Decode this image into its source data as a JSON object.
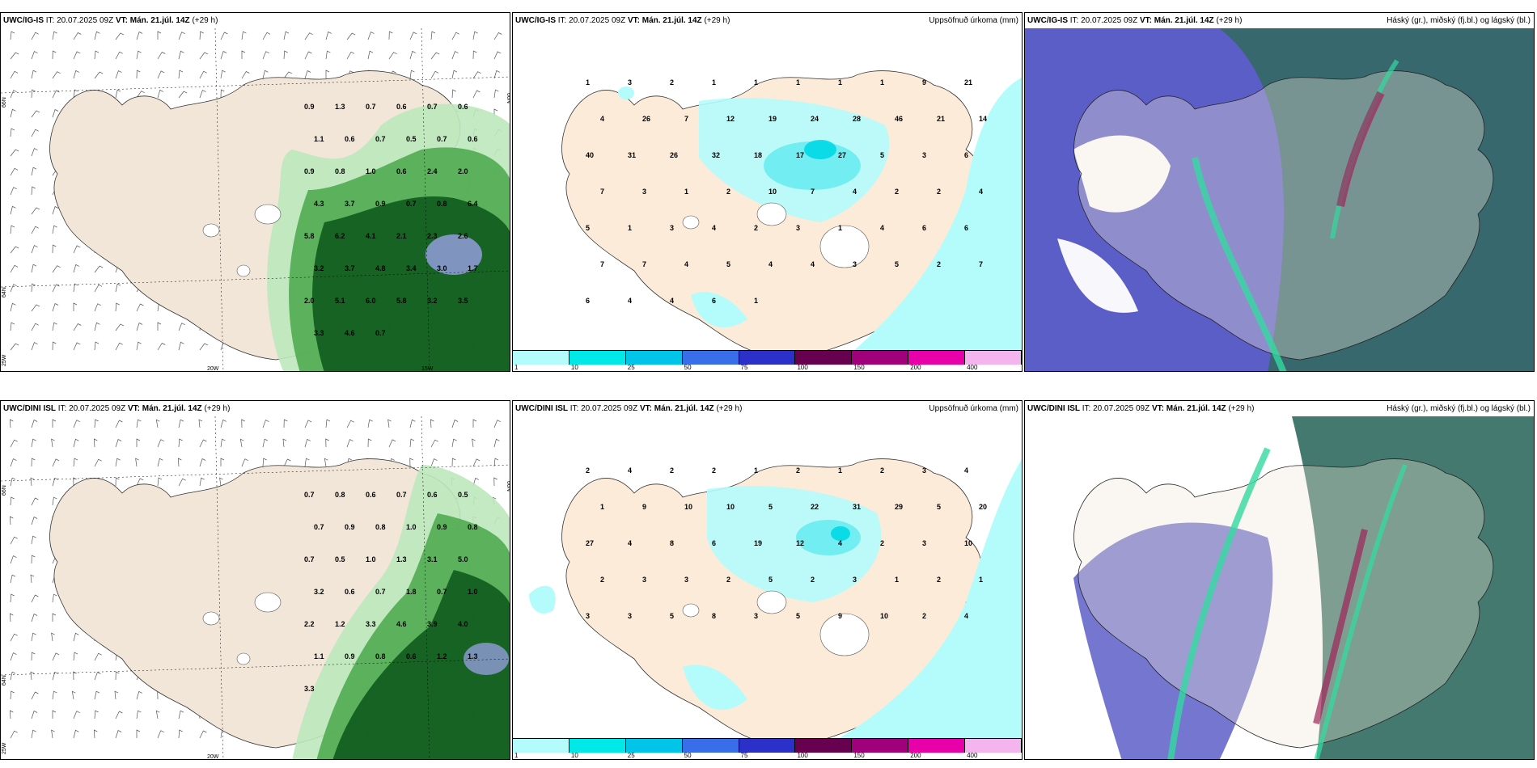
{
  "rows": [
    {
      "model": "UWC/IG-IS",
      "it_label": "IT:",
      "it_value": "20.07.2025 09Z",
      "vt_label": "VT:",
      "vt_value": "Mán. 21.júl. 14Z",
      "lead": "(+29 h)"
    },
    {
      "model": "UWC/DINI ISL",
      "it_label": "IT:",
      "it_value": "20.07.2025 09Z",
      "vt_label": "VT:",
      "vt_value": "Mán. 21.júl. 14Z",
      "lead": "(+29 h)"
    }
  ],
  "precip_title": "Uppsöfnuð úrkoma (mm)",
  "cloud_title": "Háský (gr.), miðský (fj.bl.) og lágský (bl.)",
  "axis_labels": {
    "lat66": "66N",
    "lat64": "64N",
    "lon25": "25W",
    "lon20": "20W",
    "lon15": "15W"
  },
  "legend": {
    "colors": [
      "#b4fcfc",
      "#00e8e8",
      "#00c4e8",
      "#3a6ee8",
      "#2a30c8",
      "#680050",
      "#a0007a",
      "#e800a8",
      "#f4b4ee"
    ],
    "labels": [
      "1",
      "10",
      "25",
      "50",
      "75",
      "100",
      "150",
      "200",
      "400"
    ]
  },
  "rain_labels": [
    [
      "0.9",
      "1.3",
      "0.7",
      "0.6",
      "0.7",
      "0.6",
      "1.1",
      "0.6",
      "0.7",
      "0.5",
      "0.7",
      "0.6",
      "0.9",
      "0.8",
      "1.0",
      "0.6",
      "2.4",
      "2.0",
      "4.3",
      "3.7",
      "0.9",
      "0.7",
      "0.8",
      "6.4",
      "5.8",
      "6.2",
      "4.1",
      "2.1",
      "2.3",
      "2.6",
      "3.2",
      "3.7",
      "4.8",
      "3.4",
      "3.0",
      "1.7",
      "2.0",
      "5.1",
      "6.0",
      "5.8",
      "3.2",
      "3.5",
      "3.3",
      "4.6",
      "0.7"
    ],
    [
      "0.7",
      "0.8",
      "0.6",
      "0.7",
      "0.6",
      "0.5",
      "0.7",
      "0.9",
      "0.8",
      "1.0",
      "0.9",
      "0.8",
      "0.7",
      "0.5",
      "1.0",
      "1.3",
      "3.1",
      "5.0",
      "3.2",
      "0.6",
      "0.7",
      "1.8",
      "0.7",
      "1.0",
      "2.2",
      "1.2",
      "3.3",
      "4.6",
      "3.9",
      "4.0",
      "1.1",
      "0.9",
      "0.8",
      "0.6",
      "1.2",
      "1.3",
      "3.3"
    ]
  ],
  "precip_labels": [
    [
      "1",
      "3",
      "2",
      "1",
      "1",
      "1",
      "1",
      "1",
      "9",
      "21",
      "4",
      "26",
      "7",
      "12",
      "19",
      "24",
      "28",
      "46",
      "21",
      "14",
      "40",
      "31",
      "26",
      "32",
      "18",
      "17",
      "27",
      "5",
      "3",
      "6",
      "7",
      "3",
      "1",
      "2",
      "10",
      "7",
      "4",
      "2",
      "2",
      "4",
      "5",
      "1",
      "3",
      "4",
      "2",
      "3",
      "1",
      "4",
      "6",
      "6",
      "7",
      "7",
      "4",
      "5",
      "4",
      "4",
      "3",
      "5",
      "2",
      "7",
      "6",
      "4",
      "4",
      "6",
      "1"
    ],
    [
      "2",
      "4",
      "2",
      "2",
      "1",
      "2",
      "1",
      "2",
      "3",
      "4",
      "1",
      "9",
      "10",
      "10",
      "5",
      "22",
      "31",
      "29",
      "5",
      "20",
      "27",
      "4",
      "8",
      "6",
      "19",
      "12",
      "4",
      "2",
      "3",
      "10",
      "2",
      "3",
      "3",
      "2",
      "5",
      "2",
      "3",
      "1",
      "2",
      "1",
      "3",
      "3",
      "5",
      "8",
      "3",
      "5",
      "9",
      "10",
      "2",
      "4"
    ]
  ]
}
